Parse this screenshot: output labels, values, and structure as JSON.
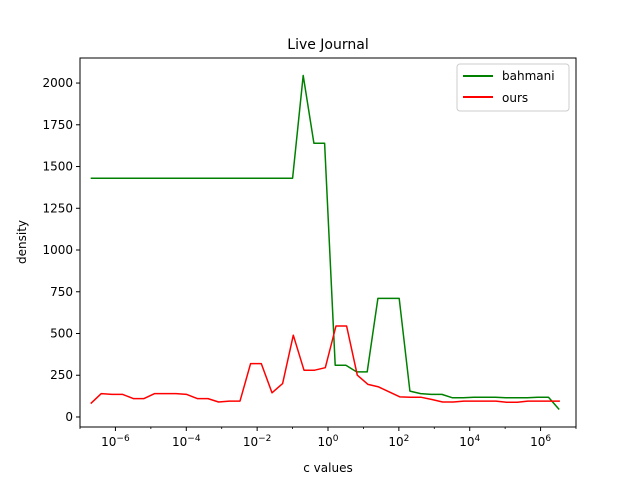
{
  "chart_data": {
    "type": "line",
    "title": "Live Journal",
    "xlabel": "c values",
    "ylabel": "density",
    "xscale": "log",
    "xlim": [
      1e-07,
      10000000
    ],
    "ylim": [
      -60,
      2150
    ],
    "xticks": [
      {
        "value": 1e-06,
        "base": "10",
        "exp": "−6"
      },
      {
        "value": 0.0001,
        "base": "10",
        "exp": "−4"
      },
      {
        "value": 0.01,
        "base": "10",
        "exp": "−2"
      },
      {
        "value": 1,
        "base": "10",
        "exp": "0"
      },
      {
        "value": 100,
        "base": "10",
        "exp": "2"
      },
      {
        "value": 10000,
        "base": "10",
        "exp": "4"
      },
      {
        "value": 1000000,
        "base": "10",
        "exp": "6"
      }
    ],
    "yticks": [
      0,
      250,
      500,
      750,
      1000,
      1250,
      1500,
      1750,
      2000
    ],
    "legend_position": "top-right",
    "grid": false,
    "series": [
      {
        "name": "bahmani",
        "color": "#008000",
        "x": [
          2e-07,
          0.1,
          0.2,
          0.4,
          0.8,
          1.6,
          3.2,
          6.4,
          12.8,
          25.6,
          51.2,
          102.4,
          204.8,
          409.6,
          819.2,
          1638.4,
          3276.8,
          6553.6,
          13107.2,
          26214.4,
          52428.8,
          104857.6,
          209715.2,
          419430.4,
          838860.8,
          1677721.6,
          3355443.2
        ],
        "y": [
          1430,
          1430,
          2045,
          1640,
          1640,
          310,
          310,
          270,
          270,
          710,
          710,
          710,
          155,
          140,
          135,
          135,
          115,
          115,
          118,
          118,
          118,
          115,
          115,
          115,
          118,
          118,
          45
        ]
      },
      {
        "name": "ours",
        "color": "#ff0000",
        "x": [
          2e-07,
          4e-07,
          8e-07,
          1.6e-06,
          3.2e-06,
          6.4e-06,
          1.28e-05,
          2.56e-05,
          5.12e-05,
          0.0001024,
          0.0002048,
          0.0004096,
          0.0008192,
          0.0016384,
          0.0032768,
          0.0065536,
          0.0131072,
          0.0262144,
          0.0524288,
          0.1048576,
          0.2097152,
          0.4194304,
          0.8388608,
          1.6777216,
          3.3554432,
          6.7108864,
          13.4217728,
          26.8435456,
          53.6870912,
          107.3741824,
          214.7483648,
          429.4967296,
          858.9934592,
          1717.9869184,
          3435.9738368,
          6871.9476736,
          13743.8953472,
          27487.7906944,
          54975.5813888,
          109951.1627776,
          219902.3255552,
          439804.6511104,
          879609.3022208,
          1759218.6044416,
          3518437.2088832
        ],
        "y": [
          80,
          140,
          135,
          135,
          110,
          110,
          140,
          140,
          140,
          135,
          110,
          110,
          90,
          95,
          95,
          320,
          320,
          145,
          200,
          490,
          280,
          280,
          295,
          545,
          545,
          250,
          195,
          180,
          150,
          120,
          118,
          118,
          105,
          90,
          90,
          95,
          95,
          95,
          95,
          88,
          88,
          95,
          95,
          95,
          95
        ]
      }
    ]
  }
}
